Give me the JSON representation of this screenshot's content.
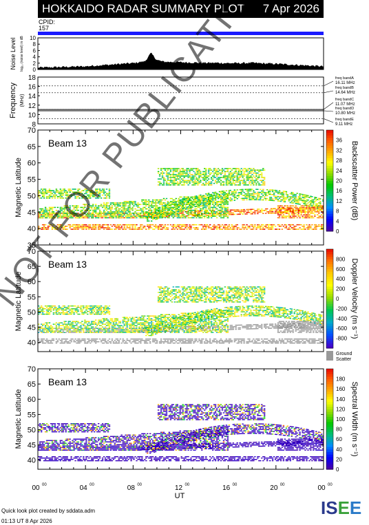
{
  "title": "HOKKAIDO RADAR SUMMARY PLOT",
  "date": "7 Apr 2026",
  "cpid_label": "CPID:",
  "cpid_value": "157",
  "footer_line1": "Quick look plot created by sddata.adm",
  "footer_line2": "01:13 UT  8 Apr 2026",
  "logo_text": "ISEE",
  "watermark": "NOT FOR PUBLICATION",
  "colors": {
    "cpid_bar": "#1a1aff",
    "ground_scatter": "#999999"
  },
  "chart_data": [
    {
      "type": "area",
      "panel": "noise",
      "ylabel": "Noise Level",
      "ylabel_sub": "log₁₀ (noise level) in dB",
      "yticks": [
        "0",
        "2",
        "4",
        "6",
        "8",
        "10"
      ],
      "ylim": [
        0,
        10
      ],
      "xlim": [
        0,
        24
      ],
      "x": [
        0,
        1,
        2,
        3,
        4,
        5,
        6,
        7,
        8,
        9,
        9.5,
        10,
        10.5,
        11,
        12,
        13,
        14,
        15,
        16,
        17,
        18,
        19,
        20,
        21,
        22,
        23,
        24
      ],
      "values": [
        0.6,
        0.7,
        0.8,
        0.9,
        1.0,
        1.3,
        1.5,
        1.8,
        2.0,
        2.6,
        5.2,
        3.0,
        2.5,
        2.4,
        2.3,
        2.2,
        2.1,
        2.1,
        2.0,
        2.0,
        2.1,
        1.9,
        1.8,
        1.6,
        1.4,
        1.2,
        1.0
      ]
    },
    {
      "type": "line",
      "panel": "frequency",
      "ylabel": "Frequency",
      "ylabel_sub": "(MHz)",
      "yticks": [
        "8",
        "10",
        "12",
        "14",
        "16",
        "18"
      ],
      "ylim": [
        8,
        18
      ],
      "xlim": [
        0,
        24
      ],
      "series_values": [
        10.8,
        11.07
      ],
      "bands": [
        {
          "label": "freq bandA",
          "value": "16.11 MHz"
        },
        {
          "label": "freq bandB",
          "value": "14.64 MHz"
        },
        {
          "label": "freq bandC",
          "value": "11.07 MHz"
        },
        {
          "label": "freq bandD",
          "value": "10.80 MHz"
        },
        {
          "label": "freq bandE",
          "value": "9.11 MHz"
        }
      ],
      "band_mhz": [
        16.11,
        14.64,
        11.07,
        10.8,
        9.11
      ]
    },
    {
      "type": "heatmap",
      "panel": "power",
      "beam_label": "Beam 13",
      "ylabel": "Magnetic Latitude",
      "yticks": [
        "35",
        "40",
        "45",
        "50",
        "55",
        "60",
        "65",
        "70"
      ],
      "ylim": [
        35,
        70
      ],
      "xlim": [
        0,
        24
      ],
      "colorbar_label": "Backscatter Power (dB)",
      "colorbar_ticks": [
        "0",
        "4",
        "8",
        "12",
        "16",
        "20",
        "24",
        "28",
        "32",
        "36"
      ],
      "colorbar_range": [
        0,
        40
      ]
    },
    {
      "type": "heatmap",
      "panel": "velocity",
      "beam_label": "Beam 13",
      "ylabel": "Magnetic Latitude",
      "yticks": [
        "40",
        "45",
        "50",
        "55",
        "60",
        "65",
        "70"
      ],
      "ylim": [
        37,
        70
      ],
      "xlim": [
        0,
        24
      ],
      "colorbar_label": "Doppler Velocity (m s⁻¹)",
      "colorbar_ticks": [
        "800",
        "600",
        "400",
        "200",
        "0",
        "-200",
        "-400",
        "-600",
        "-800"
      ],
      "colorbar_range": [
        -1000,
        1000
      ],
      "ground_scatter_label1": "Ground",
      "ground_scatter_label2": "Scatter"
    },
    {
      "type": "heatmap",
      "panel": "width",
      "beam_label": "Beam 13",
      "ylabel": "Magnetic Latitude",
      "yticks": [
        "40",
        "45",
        "50",
        "55",
        "60",
        "65",
        "70"
      ],
      "ylim": [
        37,
        70
      ],
      "xlim": [
        0,
        24
      ],
      "xticks": [
        "00",
        "04",
        "08",
        "12",
        "16",
        "20",
        "00"
      ],
      "xtick_sup": "00",
      "xlabel": "UT",
      "colorbar_label": "Spectral Width (m s⁻¹)",
      "colorbar_ticks": [
        "0",
        "20",
        "40",
        "60",
        "80",
        "100",
        "120",
        "140",
        "160",
        "180"
      ],
      "colorbar_range": [
        0,
        200
      ]
    }
  ]
}
